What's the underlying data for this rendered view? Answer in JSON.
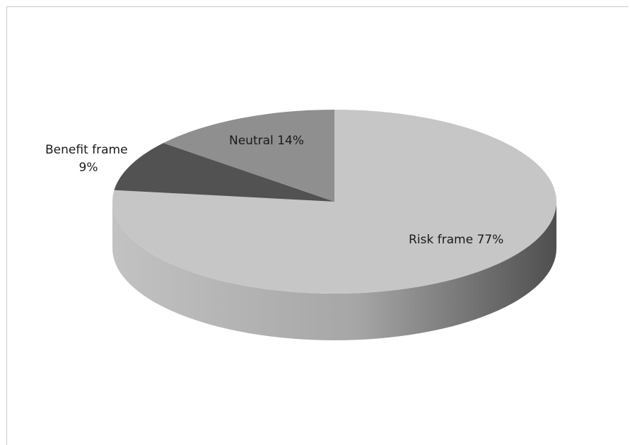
{
  "chart_data": {
    "type": "pie",
    "title": "",
    "slices": [
      {
        "label": "Risk frame",
        "value": 77,
        "label_line1": "Risk frame 77%",
        "label_line2": "",
        "color": "#c6c6c6"
      },
      {
        "label": "Benefit frame",
        "value": 9,
        "label_line1": "Benefit frame",
        "label_line2": "9%",
        "color": "#525252"
      },
      {
        "label": "Neutral",
        "value": 14,
        "label_line1": "Neutral 14%",
        "label_line2": "",
        "color": "#8f8f8f"
      }
    ],
    "style": "3d",
    "legend": "none",
    "colors": {
      "side_light": "#c2c2c2",
      "side_dark": "#4f4f4f",
      "frame_border": "#c9c9c9"
    }
  }
}
